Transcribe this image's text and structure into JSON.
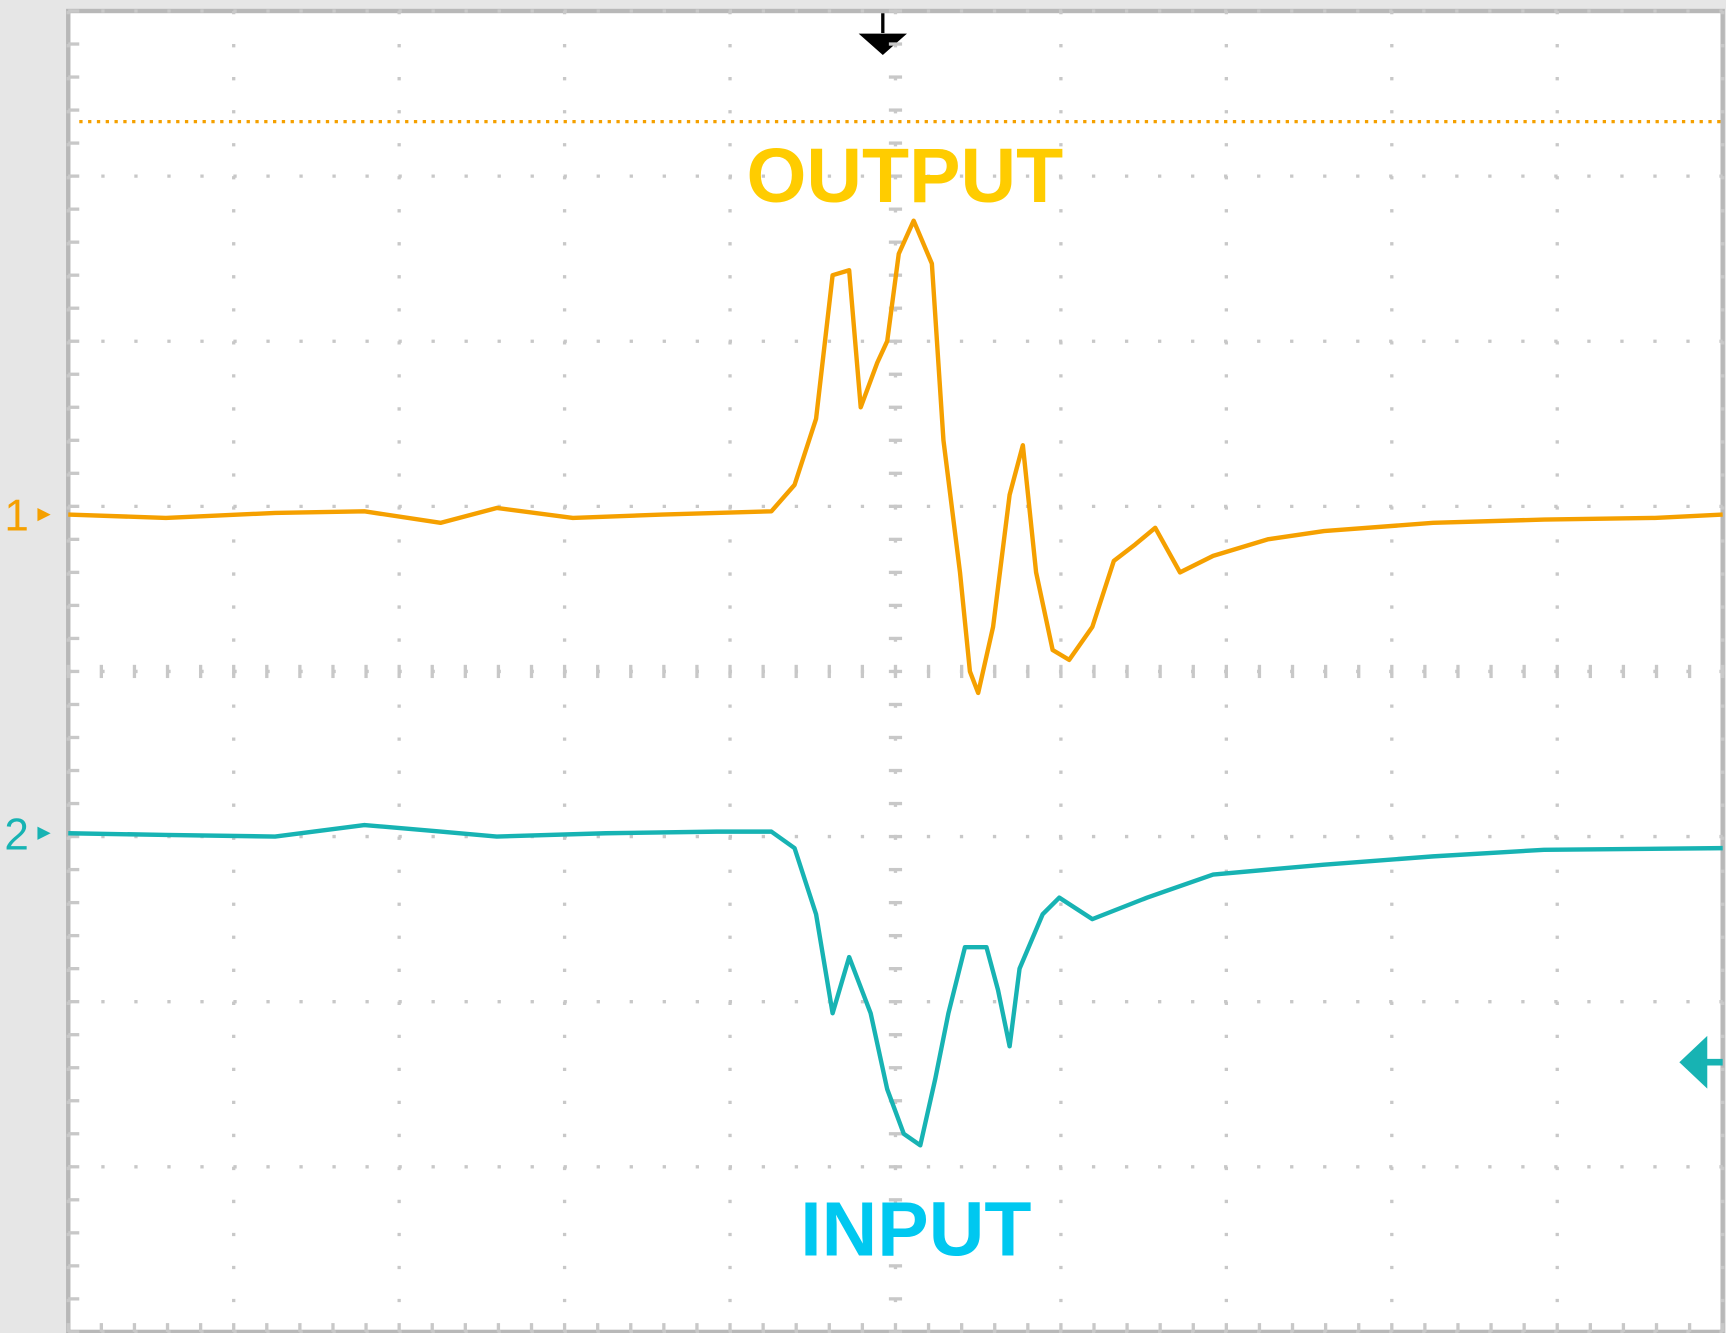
{
  "chart_data": {
    "type": "line",
    "xlim": [
      0,
      10
    ],
    "ylim": [
      0,
      8
    ],
    "xticks": [
      0,
      1,
      2,
      3,
      4,
      5,
      6,
      7,
      8,
      9,
      10
    ],
    "yticks": [
      0,
      1,
      2,
      3,
      4,
      5,
      6,
      7,
      8
    ],
    "grid": true,
    "trigger_level": 7.33,
    "series": [
      {
        "name": "OUTPUT",
        "channel": "1",
        "color": "#f5a000",
        "x": [
          0,
          0.59,
          1.25,
          1.79,
          2.25,
          2.59,
          3.05,
          3.59,
          4.25,
          4.39,
          4.52,
          4.62,
          4.72,
          4.79,
          4.89,
          4.95,
          5.02,
          5.11,
          5.22,
          5.29,
          5.39,
          5.45,
          5.5,
          5.59,
          5.69,
          5.77,
          5.85,
          5.95,
          6.05,
          6.19,
          6.32,
          6.45,
          6.57,
          6.72,
          6.92,
          7.25,
          7.59,
          8.25,
          8.92,
          9.59,
          10
        ],
        "values": [
          4.95,
          4.93,
          4.96,
          4.97,
          4.9,
          4.99,
          4.93,
          4.95,
          4.97,
          5.13,
          5.53,
          6.4,
          6.43,
          5.6,
          5.87,
          6.0,
          6.53,
          6.73,
          6.47,
          5.4,
          4.6,
          4.0,
          3.87,
          4.27,
          5.07,
          5.37,
          4.6,
          4.13,
          4.07,
          4.27,
          4.67,
          4.77,
          4.87,
          4.6,
          4.7,
          4.8,
          4.85,
          4.9,
          4.92,
          4.93,
          4.95
        ]
      },
      {
        "name": "INPUT",
        "channel": "2",
        "color": "#17b3b3",
        "x": [
          0,
          0.59,
          1.25,
          1.79,
          2.25,
          2.59,
          3.25,
          3.92,
          4.25,
          4.39,
          4.52,
          4.62,
          4.72,
          4.85,
          4.95,
          5.05,
          5.15,
          5.24,
          5.32,
          5.42,
          5.55,
          5.62,
          5.69,
          5.75,
          5.89,
          5.99,
          6.19,
          6.52,
          6.92,
          7.59,
          8.25,
          8.92,
          10
        ],
        "values": [
          3.02,
          3.01,
          3.0,
          3.07,
          3.03,
          3.0,
          3.02,
          3.03,
          3.03,
          2.93,
          2.53,
          1.93,
          2.27,
          1.93,
          1.47,
          1.2,
          1.13,
          1.53,
          1.93,
          2.33,
          2.33,
          2.07,
          1.73,
          2.2,
          2.53,
          2.63,
          2.5,
          2.63,
          2.77,
          2.83,
          2.88,
          2.92,
          2.93
        ]
      }
    ]
  }
}
